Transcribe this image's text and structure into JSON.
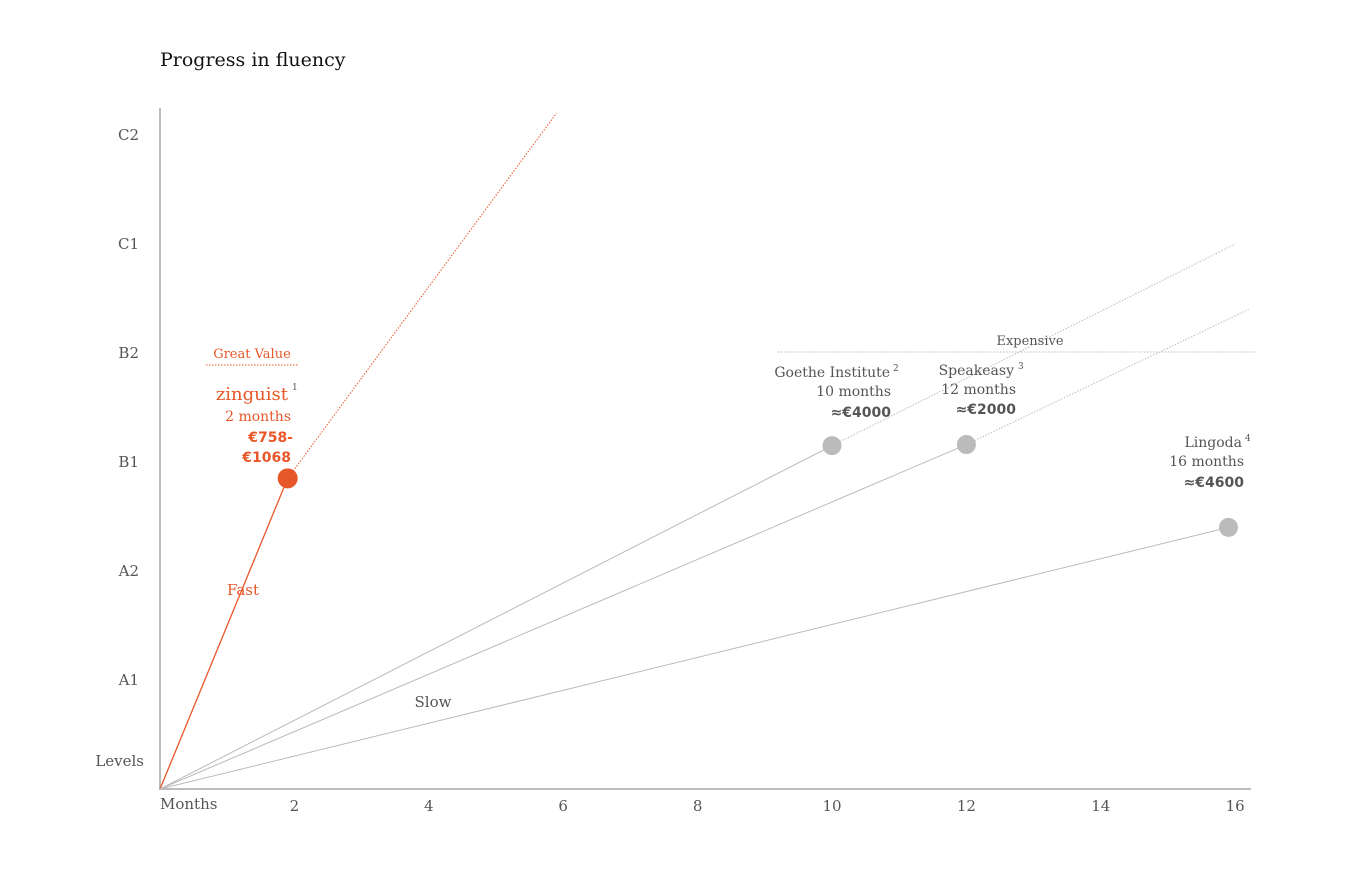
{
  "chart_data": {
    "type": "line",
    "title": "Progress in fluency",
    "xlabel": "Months",
    "ylabel": "Levels",
    "x_ticks": [
      2,
      4,
      6,
      8,
      10,
      12,
      14,
      16
    ],
    "y_levels": [
      "A1",
      "A2",
      "B1",
      "B2",
      "C1",
      "C2"
    ],
    "xlim": [
      0,
      16
    ],
    "ylim": [
      0,
      6
    ],
    "grid": false,
    "series": [
      {
        "name": "zinguist",
        "sup": "1",
        "color": "#e8572a",
        "points": [
          [
            0,
            0
          ],
          [
            1.9,
            2.85
          ]
        ],
        "trend_to": [
          5.9,
          6.2
        ],
        "duration": "2 months",
        "price_line1": "€758-",
        "price_line2": "€1068"
      },
      {
        "name": "Goethe Institute",
        "sup": "2",
        "color": "#bbbbbb",
        "points": [
          [
            0,
            0
          ],
          [
            10,
            3.15
          ]
        ],
        "trend_to": [
          16,
          5.0
        ],
        "duration": "10 months",
        "price": "≈€4000"
      },
      {
        "name": "Speakeasy",
        "sup": "3",
        "color": "#bbbbbb",
        "points": [
          [
            0,
            0
          ],
          [
            12,
            3.16
          ]
        ],
        "trend_to": [
          16.2,
          4.4
        ],
        "duration": "12 months",
        "price": "≈€2000"
      },
      {
        "name": "Lingoda",
        "sup": "4",
        "color": "#bbbbbb",
        "points": [
          [
            0,
            0
          ],
          [
            15.9,
            2.4
          ]
        ],
        "duration": "16 months",
        "price": "≈€4600"
      }
    ],
    "annotations": {
      "fast": "Fast",
      "slow": "Slow",
      "great_value": "Great Value",
      "expensive": "Expensive"
    }
  }
}
